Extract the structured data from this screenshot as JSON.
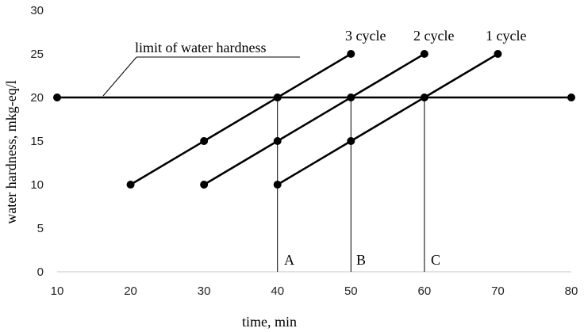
{
  "chart_data": {
    "type": "line",
    "xlabel": "time, min",
    "ylabel": "water hardness, mkg-eq/l",
    "xlim": [
      10,
      80
    ],
    "ylim": [
      0,
      30
    ],
    "xticks": [
      10,
      20,
      30,
      40,
      50,
      60,
      70,
      80
    ],
    "yticks": [
      0,
      5,
      10,
      15,
      20,
      25,
      30
    ],
    "grid": false,
    "series": [
      {
        "name": "1 cycle",
        "x": [
          40,
          50,
          60,
          70
        ],
        "y": [
          10,
          15,
          20,
          25
        ]
      },
      {
        "name": "2 cycle",
        "x": [
          30,
          40,
          50,
          60
        ],
        "y": [
          10,
          15,
          20,
          25
        ]
      },
      {
        "name": "3 cycle",
        "x": [
          20,
          30,
          40,
          50
        ],
        "y": [
          10,
          15,
          20,
          25
        ]
      }
    ],
    "limit_line": {
      "label": "limit of water hardness",
      "x": [
        10,
        80
      ],
      "y": 20
    },
    "markers": [
      {
        "label": "A",
        "x": 40
      },
      {
        "label": "B",
        "x": 50
      },
      {
        "label": "C",
        "x": 60
      }
    ],
    "colors": {
      "lines": "#000000",
      "axis": "#d9d9d9"
    }
  }
}
